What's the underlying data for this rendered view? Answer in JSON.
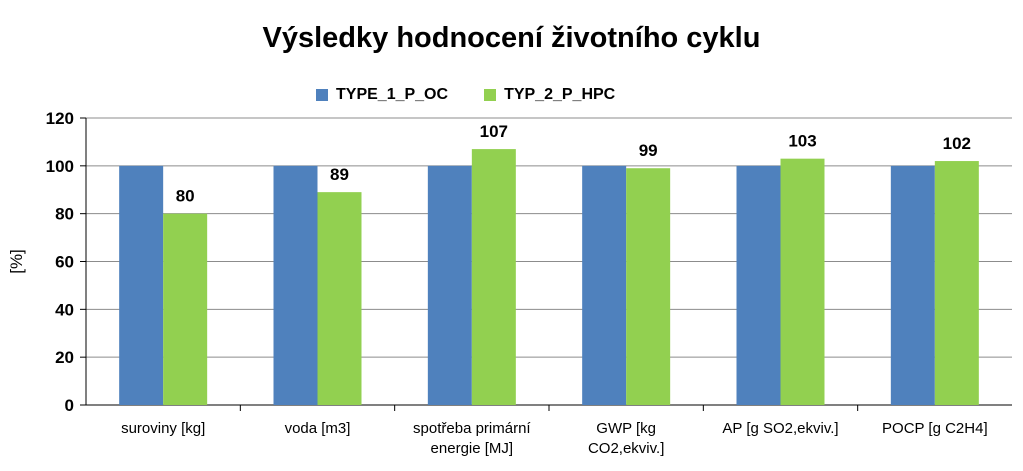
{
  "chart_data": {
    "type": "bar",
    "title": "Výsledky hodnocení životního cyklu",
    "xlabel": "",
    "ylabel": "[%]",
    "ylim": [
      0,
      120
    ],
    "yticks": [
      0,
      20,
      40,
      60,
      80,
      100,
      120
    ],
    "grid": true,
    "legend_position": "top",
    "categories": [
      [
        "suroviny [kg]"
      ],
      [
        "voda [m3]"
      ],
      [
        "spotřeba primární",
        "energie [MJ]"
      ],
      [
        "GWP [kg",
        "CO2,ekviv.]"
      ],
      [
        "AP [g SO2,ekviv.]"
      ],
      [
        "POCP [g C2H4]"
      ]
    ],
    "series": [
      {
        "name": "TYPE_1_P_OC",
        "color": "#4f81bd",
        "values": [
          100,
          100,
          100,
          100,
          100,
          100
        ],
        "show_labels": false
      },
      {
        "name": "TYP_2_P_HPC",
        "color": "#92d050",
        "values": [
          80,
          89,
          107,
          99,
          103,
          102
        ],
        "show_labels": true
      }
    ]
  }
}
